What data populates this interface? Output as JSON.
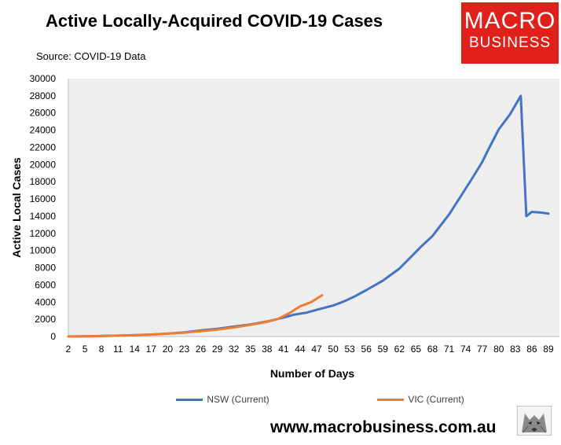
{
  "header": {
    "title": "Active Locally-Acquired COVID-19 Cases",
    "source": "Source: COVID-19 Data"
  },
  "logo": {
    "line1": "MACRO",
    "line2": "BUSINESS"
  },
  "footer": {
    "website": "www.macrobusiness.com.au"
  },
  "colors": {
    "nsw": "#4472c4",
    "vic": "#ed7d31",
    "plot_bg": "#eeeeee",
    "brand": "#e0201b"
  },
  "icons": {
    "wolf": "wolf-logo-icon"
  },
  "chart_data": {
    "type": "line",
    "title": "Active Locally-Acquired COVID-19 Cases",
    "xlabel": "Number of Days",
    "ylabel": "Active Local Cases",
    "xlim": [
      2,
      91
    ],
    "ylim": [
      0,
      30000
    ],
    "grid": false,
    "legend": "bottom",
    "x_ticks": [
      2,
      5,
      8,
      11,
      14,
      17,
      20,
      23,
      26,
      29,
      32,
      35,
      38,
      41,
      44,
      47,
      50,
      53,
      56,
      59,
      62,
      65,
      68,
      71,
      74,
      77,
      80,
      83,
      86,
      89
    ],
    "y_ticks": [
      0,
      2000,
      4000,
      6000,
      8000,
      10000,
      12000,
      14000,
      16000,
      18000,
      20000,
      22000,
      24000,
      26000,
      28000,
      30000
    ],
    "series": [
      {
        "name": "NSW (Current)",
        "color": "#4472c4",
        "x": [
          2,
          5,
          8,
          11,
          14,
          17,
          20,
          23,
          26,
          29,
          32,
          35,
          38,
          41,
          43,
          45,
          47,
          50,
          52,
          54,
          56,
          59,
          62,
          64,
          66,
          68,
          71,
          73,
          75,
          77,
          78,
          80,
          82,
          84,
          85,
          86,
          88,
          89
        ],
        "values": [
          0,
          30,
          60,
          100,
          160,
          230,
          330,
          480,
          700,
          900,
          1150,
          1400,
          1750,
          2200,
          2550,
          2750,
          3100,
          3600,
          4100,
          4700,
          5400,
          6500,
          7900,
          9200,
          10500,
          11700,
          14200,
          16200,
          18200,
          20300,
          21600,
          24100,
          25800,
          28000,
          14000,
          14500,
          14400,
          14300
        ]
      },
      {
        "name": "VIC (Current)",
        "color": "#ed7d31",
        "x": [
          2,
          5,
          8,
          11,
          14,
          17,
          20,
          23,
          26,
          29,
          32,
          35,
          38,
          40,
          42,
          44,
          46,
          48
        ],
        "values": [
          0,
          20,
          50,
          100,
          150,
          220,
          330,
          450,
          620,
          800,
          1050,
          1350,
          1700,
          2050,
          2700,
          3500,
          4000,
          4800
        ]
      }
    ]
  }
}
